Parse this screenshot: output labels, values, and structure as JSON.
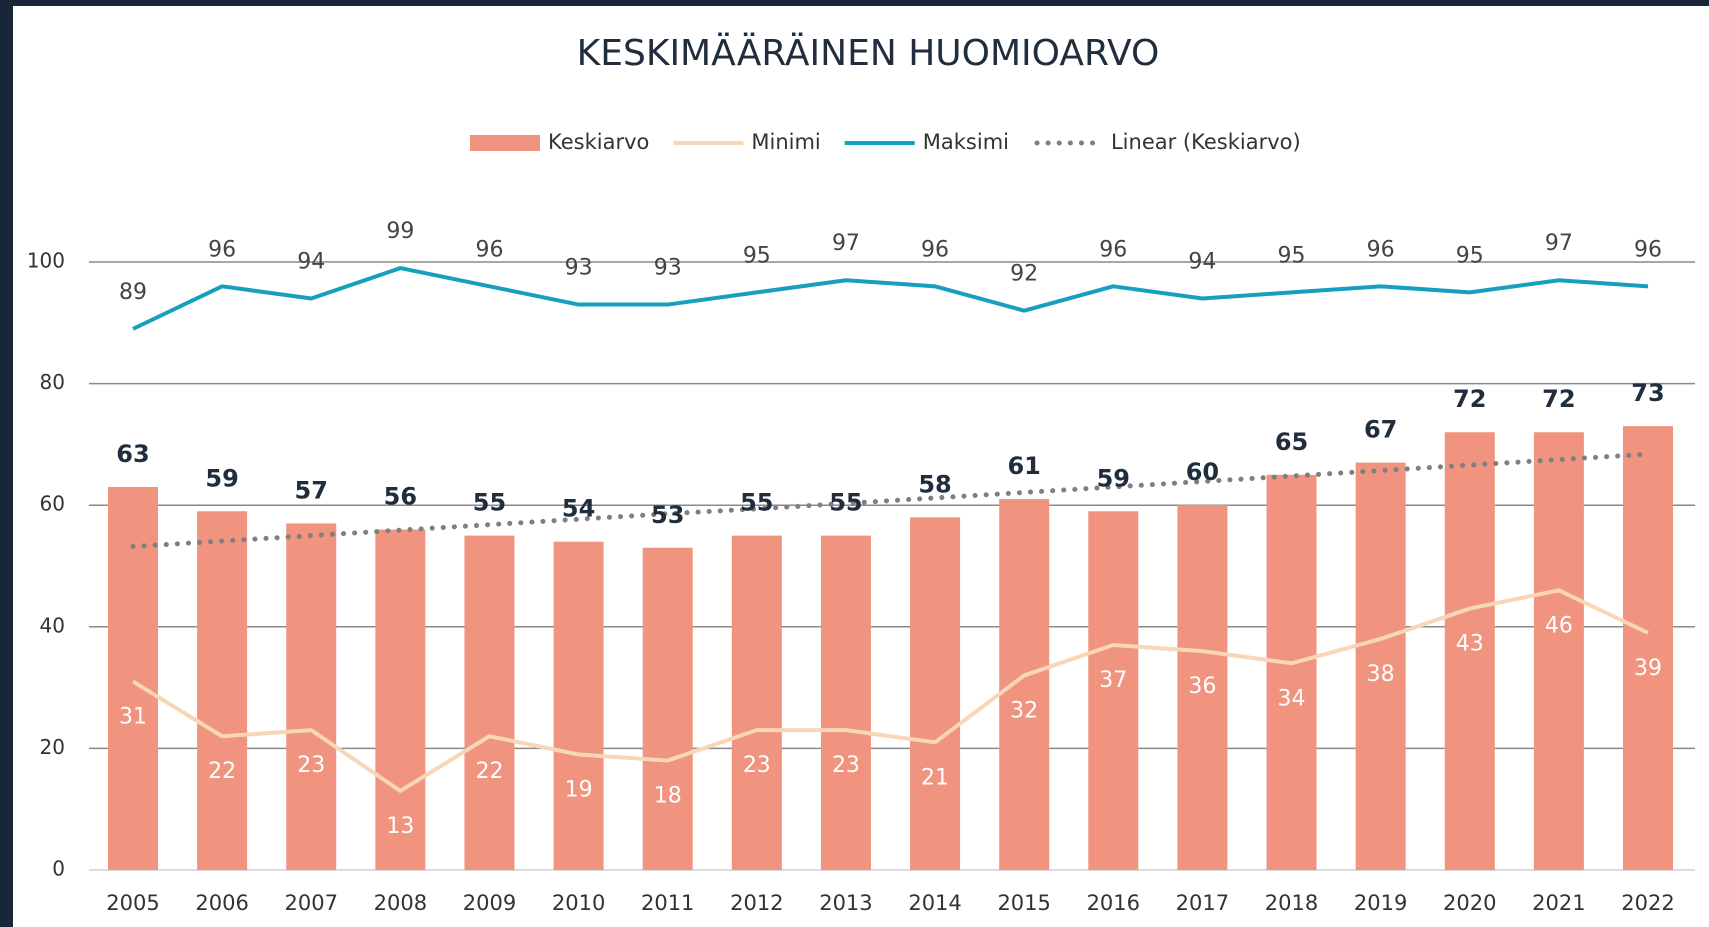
{
  "chart_data": {
    "type": "bar_line",
    "title": "KESKIMÄÄRÄINEN HUOMIOARVO",
    "categories": [
      "2005",
      "2006",
      "2007",
      "2008",
      "2009",
      "2010",
      "2011",
      "2012",
      "2013",
      "2014",
      "2015",
      "2016",
      "2017",
      "2018",
      "2019",
      "2020",
      "2021",
      "2022"
    ],
    "series": [
      {
        "name": "Keskiarvo",
        "type": "bar",
        "color": "#f0937f",
        "values": [
          63,
          59,
          57,
          56,
          55,
          54,
          53,
          55,
          55,
          58,
          61,
          59,
          60,
          65,
          67,
          72,
          72,
          73
        ]
      },
      {
        "name": "Minimi",
        "type": "line",
        "color": "#f8d6b6",
        "values": [
          31,
          22,
          23,
          13,
          22,
          19,
          18,
          23,
          23,
          21,
          32,
          37,
          36,
          34,
          38,
          43,
          46,
          39
        ]
      },
      {
        "name": "Maksimi",
        "type": "line",
        "color": "#16a0be",
        "values": [
          89,
          96,
          94,
          99,
          96,
          93,
          93,
          95,
          97,
          96,
          92,
          96,
          94,
          95,
          96,
          95,
          97,
          96
        ]
      },
      {
        "name": "Linear (Keskiarvo)",
        "type": "trend",
        "color": "#7f7f7f",
        "values": [
          53.2,
          54.1,
          55.0,
          55.9,
          56.8,
          57.7,
          58.6,
          59.4,
          60.3,
          61.2,
          62.1,
          63.0,
          63.9,
          64.8,
          65.7,
          66.6,
          67.5,
          68.4
        ]
      }
    ],
    "ylim": [
      0,
      100
    ],
    "yticks": [
      0,
      20,
      40,
      60,
      80,
      100
    ],
    "grid": true,
    "legend": "top"
  }
}
